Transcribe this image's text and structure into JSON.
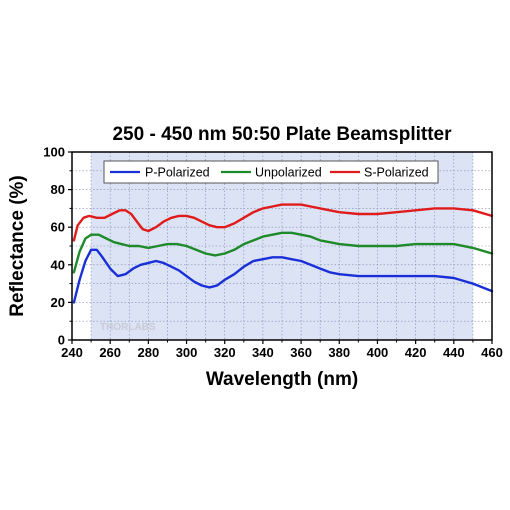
{
  "chart_data": {
    "type": "line",
    "title": "250 - 450 nm 50:50 Plate Beamsplitter",
    "xlabel": "Wavelength (nm)",
    "ylabel": "Reflectance (%)",
    "xlim": [
      240,
      460
    ],
    "ylim": [
      0,
      100
    ],
    "xticks": [
      "240",
      "260",
      "280",
      "300",
      "320",
      "340",
      "360",
      "380",
      "400",
      "420",
      "440",
      "460"
    ],
    "yticks": [
      "0",
      "20",
      "40",
      "60",
      "80",
      "100"
    ],
    "shaded_range": [
      250,
      450
    ],
    "grid": true,
    "legend_position": "top",
    "watermark": "THORLABS",
    "series": [
      {
        "name": "P-Polarized",
        "color": "#1a2fd6",
        "points": [
          [
            241,
            20
          ],
          [
            244,
            32
          ],
          [
            247,
            42
          ],
          [
            250,
            48
          ],
          [
            253,
            48
          ],
          [
            256,
            44
          ],
          [
            260,
            38
          ],
          [
            264,
            34
          ],
          [
            268,
            35
          ],
          [
            272,
            38
          ],
          [
            276,
            40
          ],
          [
            280,
            41
          ],
          [
            284,
            42
          ],
          [
            288,
            41
          ],
          [
            292,
            39
          ],
          [
            296,
            37
          ],
          [
            300,
            34
          ],
          [
            304,
            31
          ],
          [
            308,
            29
          ],
          [
            312,
            28
          ],
          [
            316,
            29
          ],
          [
            320,
            32
          ],
          [
            325,
            35
          ],
          [
            330,
            39
          ],
          [
            335,
            42
          ],
          [
            340,
            43
          ],
          [
            345,
            44
          ],
          [
            350,
            44
          ],
          [
            355,
            43
          ],
          [
            360,
            42
          ],
          [
            365,
            40
          ],
          [
            370,
            38
          ],
          [
            375,
            36
          ],
          [
            380,
            35
          ],
          [
            390,
            34
          ],
          [
            400,
            34
          ],
          [
            410,
            34
          ],
          [
            420,
            34
          ],
          [
            430,
            34
          ],
          [
            440,
            33
          ],
          [
            450,
            30
          ],
          [
            460,
            26
          ]
        ]
      },
      {
        "name": "Unpolarized",
        "color": "#1e8a2a",
        "points": [
          [
            241,
            36
          ],
          [
            244,
            47
          ],
          [
            247,
            54
          ],
          [
            250,
            56
          ],
          [
            254,
            56
          ],
          [
            258,
            54
          ],
          [
            262,
            52
          ],
          [
            266,
            51
          ],
          [
            270,
            50
          ],
          [
            275,
            50
          ],
          [
            280,
            49
          ],
          [
            285,
            50
          ],
          [
            290,
            51
          ],
          [
            295,
            51
          ],
          [
            300,
            50
          ],
          [
            305,
            48
          ],
          [
            310,
            46
          ],
          [
            315,
            45
          ],
          [
            320,
            46
          ],
          [
            325,
            48
          ],
          [
            330,
            51
          ],
          [
            335,
            53
          ],
          [
            340,
            55
          ],
          [
            345,
            56
          ],
          [
            350,
            57
          ],
          [
            355,
            57
          ],
          [
            360,
            56
          ],
          [
            365,
            55
          ],
          [
            370,
            53
          ],
          [
            375,
            52
          ],
          [
            380,
            51
          ],
          [
            390,
            50
          ],
          [
            400,
            50
          ],
          [
            410,
            50
          ],
          [
            420,
            51
          ],
          [
            430,
            51
          ],
          [
            440,
            51
          ],
          [
            450,
            49
          ],
          [
            460,
            46
          ]
        ]
      },
      {
        "name": "S-Polarized",
        "color": "#e01b1b",
        "points": [
          [
            241,
            53
          ],
          [
            243,
            61
          ],
          [
            246,
            65
          ],
          [
            249,
            66
          ],
          [
            253,
            65
          ],
          [
            257,
            65
          ],
          [
            261,
            67
          ],
          [
            265,
            69
          ],
          [
            268,
            69
          ],
          [
            271,
            67
          ],
          [
            274,
            63
          ],
          [
            277,
            59
          ],
          [
            280,
            58
          ],
          [
            284,
            60
          ],
          [
            288,
            63
          ],
          [
            292,
            65
          ],
          [
            296,
            66
          ],
          [
            300,
            66
          ],
          [
            304,
            65
          ],
          [
            308,
            63
          ],
          [
            312,
            61
          ],
          [
            316,
            60
          ],
          [
            320,
            60
          ],
          [
            325,
            62
          ],
          [
            330,
            65
          ],
          [
            335,
            68
          ],
          [
            340,
            70
          ],
          [
            345,
            71
          ],
          [
            350,
            72
          ],
          [
            355,
            72
          ],
          [
            360,
            72
          ],
          [
            365,
            71
          ],
          [
            370,
            70
          ],
          [
            375,
            69
          ],
          [
            380,
            68
          ],
          [
            390,
            67
          ],
          [
            400,
            67
          ],
          [
            410,
            68
          ],
          [
            420,
            69
          ],
          [
            430,
            70
          ],
          [
            440,
            70
          ],
          [
            450,
            69
          ],
          [
            460,
            66
          ]
        ]
      }
    ]
  }
}
